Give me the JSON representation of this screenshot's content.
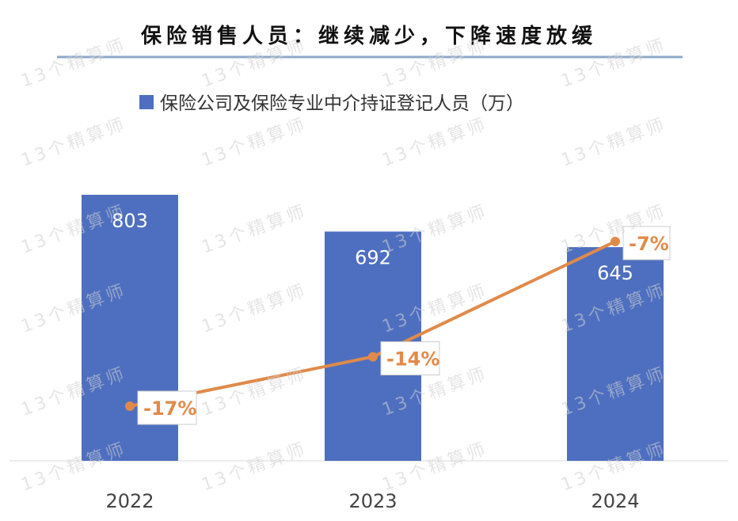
{
  "watermark": "13个精算师",
  "colors": {
    "bar": "#4E6FC0",
    "line": "#E08A4A",
    "rule": "#8EA9C9",
    "axis": "#D9D9D9"
  },
  "chart_data": {
    "type": "bar",
    "title": "保险销售人员：继续减少，下降速度放缓",
    "categories": [
      "2022",
      "2023",
      "2024"
    ],
    "series": [
      {
        "name": "保险公司及保险专业中介持证登记人员（万）",
        "values": [
          803,
          692,
          645
        ],
        "labels": [
          "803",
          "692",
          "645"
        ]
      }
    ],
    "line_series": {
      "values": [
        -17,
        -14,
        -7
      ],
      "labels": [
        "-17%",
        "-14%",
        "-7%"
      ]
    },
    "ylim": [
      0,
      1000
    ],
    "legend": "top-center",
    "grid": false
  }
}
